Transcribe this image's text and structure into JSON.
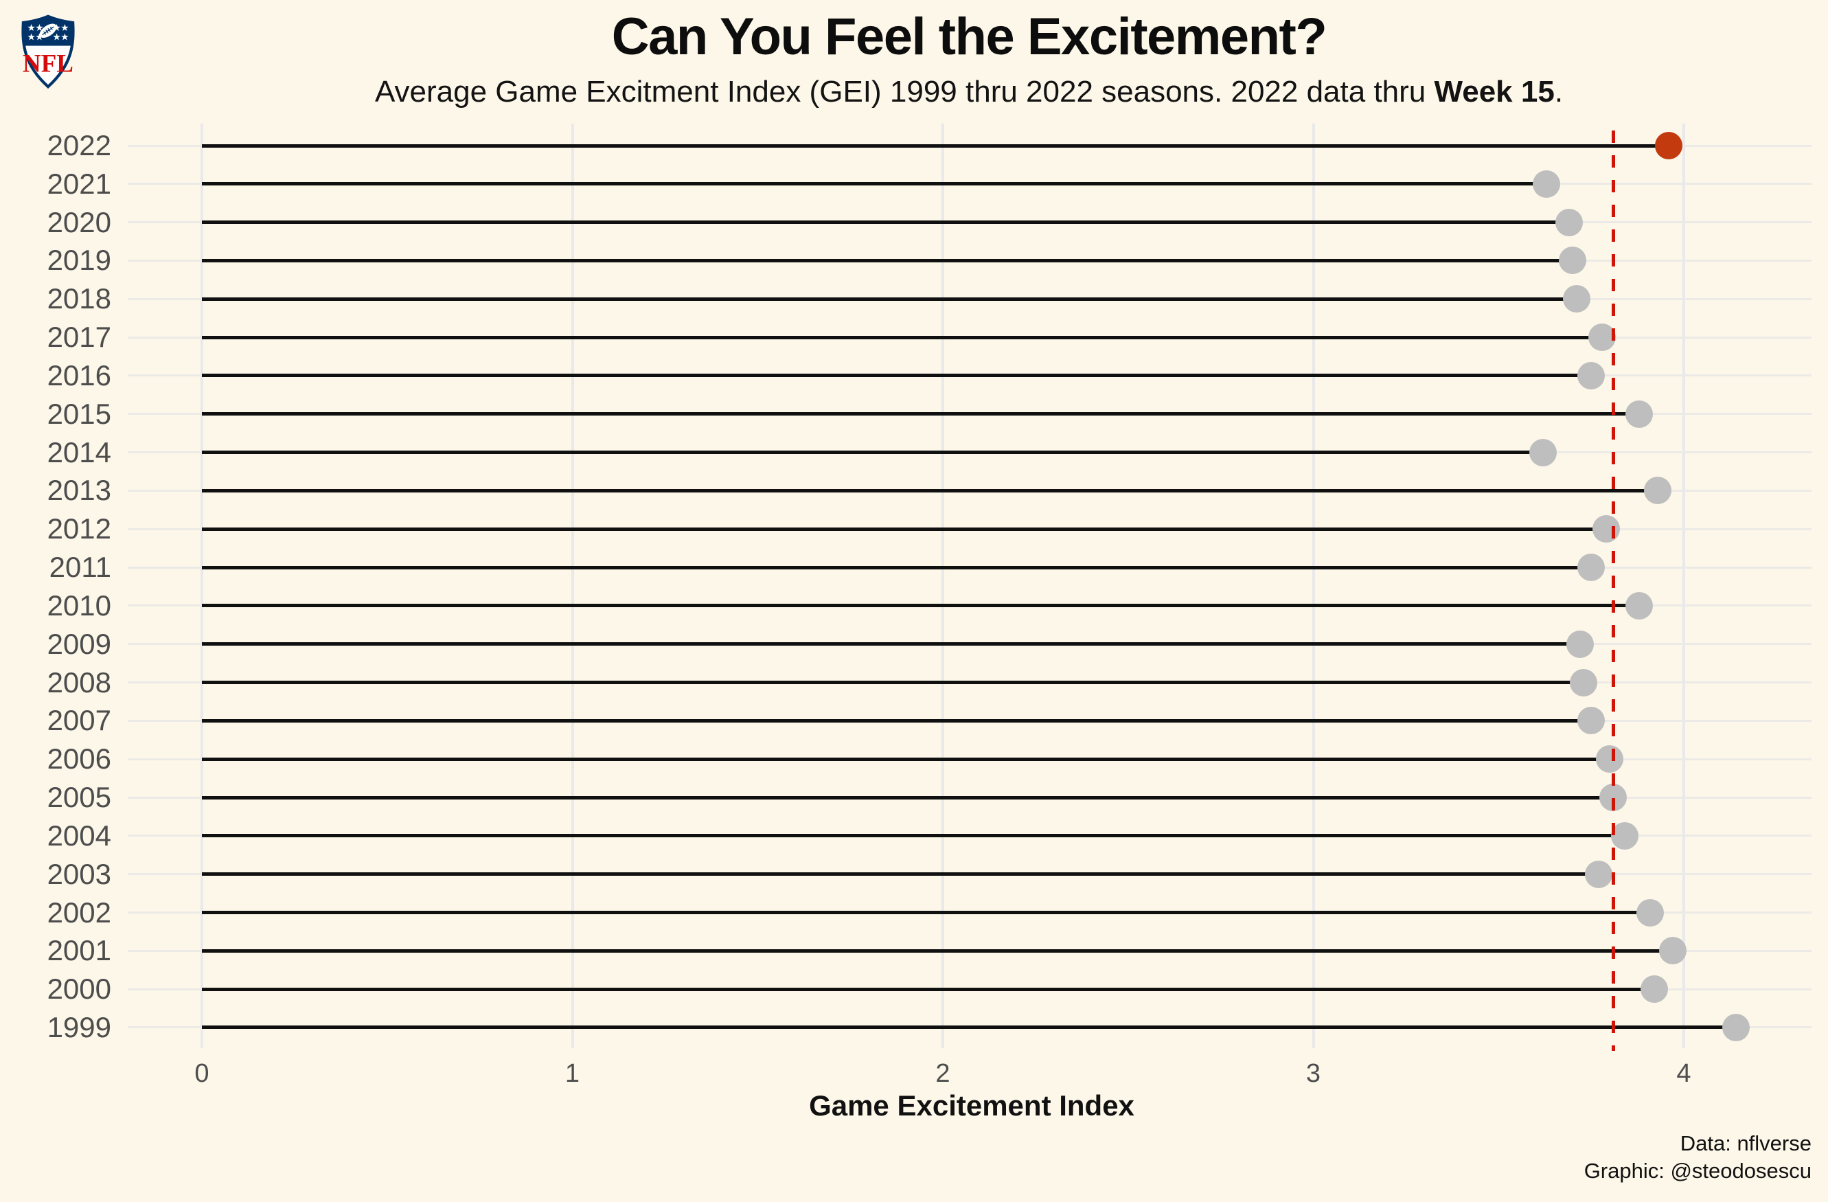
{
  "logo": {
    "label": "NFL"
  },
  "header": {
    "title": "Can You Feel the Excitement?",
    "subtitle_prefix": "Average Game Excitment Index (GEI) 1999 thru 2022 seasons. 2022 data thru ",
    "subtitle_bold": "Week 15",
    "subtitle_suffix": "."
  },
  "footer": {
    "data_credit": "Data: nflverse",
    "graphic_credit": "Graphic: @steodosescu"
  },
  "chart_data": {
    "type": "lollipop",
    "orientation": "horizontal",
    "title": "Can You Feel the Excitement?",
    "subtitle": "Average Game Excitment Index (GEI) 1999 thru 2022 seasons. 2022 data thru Week 15.",
    "xlabel": "Game Excitement Index",
    "ylabel": "",
    "xlim": [
      0,
      4.25
    ],
    "x_ticks": [
      "0",
      "1",
      "2",
      "3",
      "4"
    ],
    "x_tick_values": [
      0,
      1,
      2,
      3,
      4
    ],
    "grid": true,
    "legend": "none",
    "reference_line_x": 3.81,
    "reference_line_style": "dashed",
    "highlight_year": "2022",
    "series": [
      {
        "year": "2022",
        "gei": 3.96
      },
      {
        "year": "2021",
        "gei": 3.63
      },
      {
        "year": "2020",
        "gei": 3.69
      },
      {
        "year": "2019",
        "gei": 3.7
      },
      {
        "year": "2018",
        "gei": 3.71
      },
      {
        "year": "2017",
        "gei": 3.78
      },
      {
        "year": "2016",
        "gei": 3.75
      },
      {
        "year": "2015",
        "gei": 3.88
      },
      {
        "year": "2014",
        "gei": 3.62
      },
      {
        "year": "2013",
        "gei": 3.93
      },
      {
        "year": "2012",
        "gei": 3.79
      },
      {
        "year": "2011",
        "gei": 3.75
      },
      {
        "year": "2010",
        "gei": 3.88
      },
      {
        "year": "2009",
        "gei": 3.72
      },
      {
        "year": "2008",
        "gei": 3.73
      },
      {
        "year": "2007",
        "gei": 3.75
      },
      {
        "year": "2006",
        "gei": 3.8
      },
      {
        "year": "2005",
        "gei": 3.81
      },
      {
        "year": "2004",
        "gei": 3.84
      },
      {
        "year": "2003",
        "gei": 3.77
      },
      {
        "year": "2002",
        "gei": 3.91
      },
      {
        "year": "2001",
        "gei": 3.97
      },
      {
        "year": "2000",
        "gei": 3.92
      },
      {
        "year": "1999",
        "gei": 4.14
      }
    ],
    "colors": {
      "background": "#FCF7E8",
      "dot": "#BEBEBE",
      "highlight_dot": "#C23A0E",
      "stem": "#101010",
      "reference_line": "#CE1507",
      "grid": "#EBEAE6",
      "axis_text": "#4D4D4D",
      "logo_blue": "#013369",
      "logo_red": "#D50A0A"
    }
  }
}
